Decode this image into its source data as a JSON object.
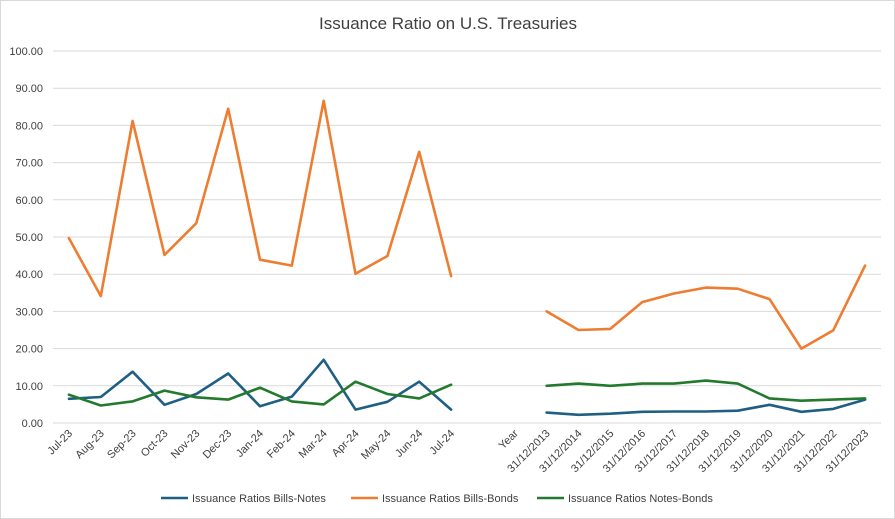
{
  "chart_data": {
    "type": "line",
    "title": "Issuance Ratio on U.S. Treasuries",
    "xlabel": "",
    "ylabel": "",
    "ylim": [
      0,
      100
    ],
    "yticks": [
      "0.00",
      "10.00",
      "20.00",
      "30.00",
      "40.00",
      "50.00",
      "60.00",
      "70.00",
      "80.00",
      "90.00",
      "100.00"
    ],
    "grid": true,
    "legend_position": "bottom",
    "categories": [
      "Jul-23",
      "Aug-23",
      "Sep-23",
      "Oct-23",
      "Nov-23",
      "Dec-23",
      "Jan-24",
      "Feb-24",
      "Mar-24",
      "Apr-24",
      "May-24",
      "Jun-24",
      "Jul-24",
      "",
      "Year",
      "31/12/2013",
      "31/12/2014",
      "31/12/2015",
      "31/12/2016",
      "31/12/2017",
      "31/12/2018",
      "31/12/2019",
      "31/12/2020",
      "31/12/2021",
      "31/12/2022",
      "31/12/2023"
    ],
    "series": [
      {
        "name": "Issuance Ratios Bills-Notes",
        "color": "#1f5f83",
        "values": [
          6.5,
          7.0,
          13.8,
          4.9,
          7.8,
          13.3,
          4.5,
          7.1,
          17.0,
          3.6,
          5.7,
          11.1,
          3.6,
          null,
          null,
          2.8,
          2.2,
          2.5,
          3.0,
          3.1,
          3.1,
          3.3,
          4.9,
          3.0,
          3.8,
          6.3
        ]
      },
      {
        "name": "Issuance Ratios Bills-Bonds",
        "color": "#ed7d31",
        "values": [
          49.7,
          34.1,
          81.2,
          45.2,
          53.7,
          84.5,
          43.9,
          42.3,
          86.6,
          40.1,
          44.9,
          72.9,
          39.5,
          null,
          null,
          30.0,
          25.0,
          25.3,
          32.5,
          34.8,
          36.4,
          36.1,
          33.3,
          20.0,
          24.9,
          42.3
        ]
      },
      {
        "name": "Issuance Ratios Notes-Bonds",
        "color": "#237a2e",
        "values": [
          7.6,
          4.7,
          5.8,
          8.7,
          6.9,
          6.3,
          9.5,
          5.8,
          5.0,
          11.1,
          7.8,
          6.6,
          10.3,
          null,
          null,
          10.0,
          10.6,
          10.0,
          10.6,
          10.6,
          11.4,
          10.6,
          6.6,
          6.0,
          6.3,
          6.6
        ]
      }
    ]
  }
}
